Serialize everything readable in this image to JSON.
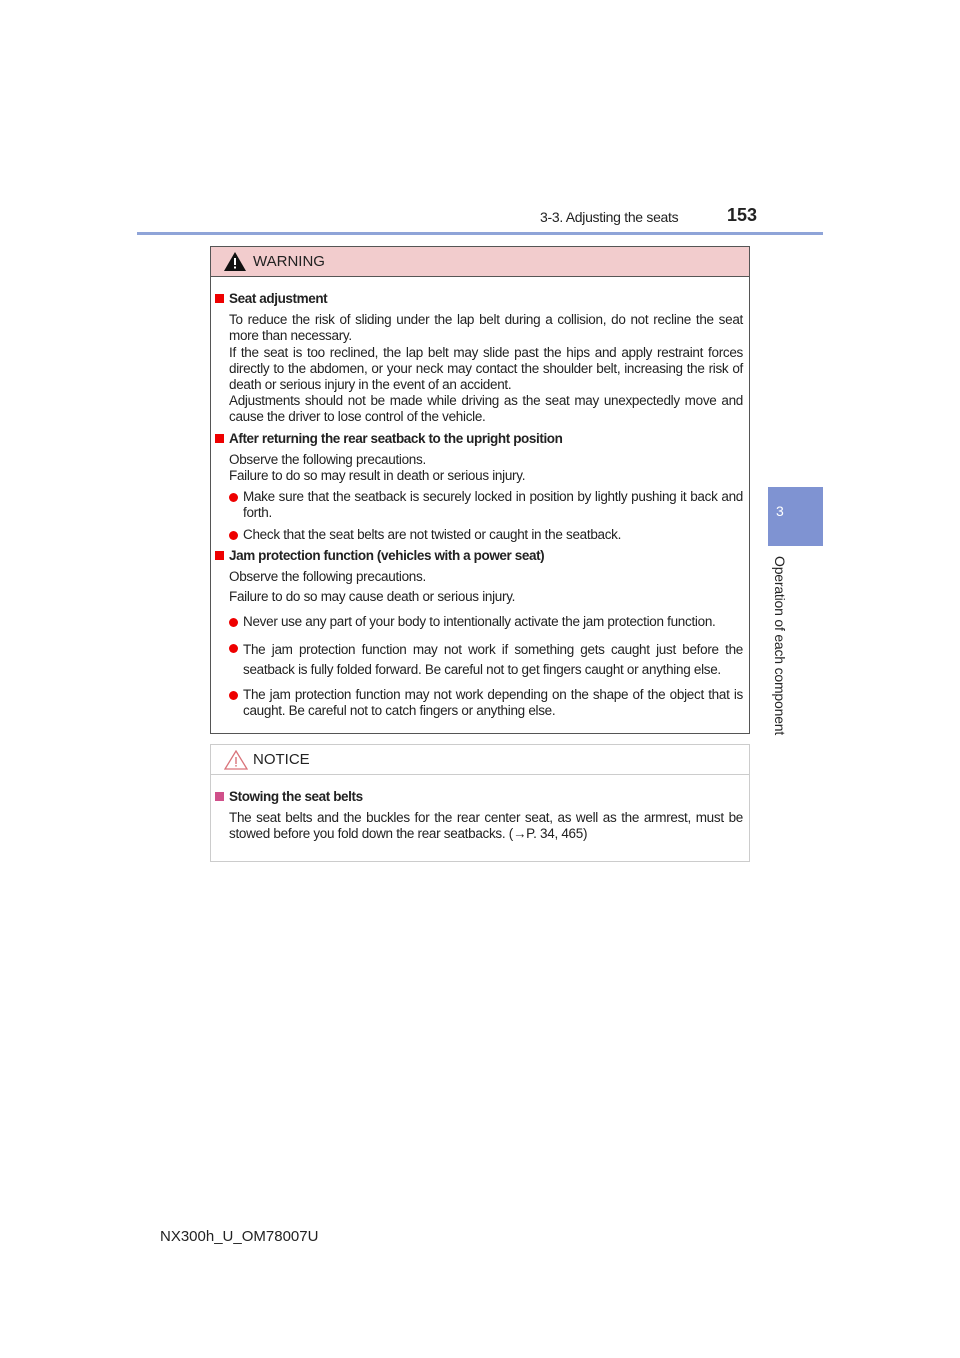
{
  "header": {
    "section": "3-3. Adjusting the seats",
    "page": "153"
  },
  "side_tab": {
    "number": "3",
    "label": "Operation of each component"
  },
  "warning": {
    "title": "WARNING",
    "sections": [
      {
        "heading": "Seat adjustment",
        "paras": [
          "To reduce the risk of sliding under the lap belt during a collision, do not recline the seat more than necessary.",
          "If the seat is too reclined, the lap belt may slide past the hips and apply restraint forces directly to the abdomen, or your neck may contact the shoulder belt, increasing the risk of death or serious injury in the event of an accident.",
          "Adjustments should not be made while driving as the seat may unexpectedly move and cause the driver to lose control of the vehicle."
        ]
      },
      {
        "heading": "After returning the rear seatback to the upright position",
        "paras": [
          "Observe the following precautions.",
          "Failure to do so may result in death or serious injury."
        ],
        "bullets": [
          "Make sure that the seatback is securely locked in position by lightly pushing it back and forth.",
          "Check that the seat belts are not twisted or caught in the seatback."
        ]
      },
      {
        "heading": "Jam protection function (vehicles with a power seat)",
        "paras": [
          "Observe the following precautions.",
          "Failure to do so may cause death or serious injury."
        ],
        "bullets": [
          "Never use any part of your body to intentionally activate the jam protection function.",
          "The jam protection function may not work if something gets caught just before the seatback is fully folded forward. Be careful not to get fingers caught or anything else.",
          "The jam protection function may not work depending on the shape of the object that is caught. Be careful not to catch fingers or anything else."
        ]
      }
    ]
  },
  "notice": {
    "title": "NOTICE",
    "heading": "Stowing the seat belts",
    "text": "The seat belts and the buckles for the rear center seat, as well as the armrest, must be stowed before you fold down the rear seatbacks. (→P. 34, 465)"
  },
  "footer": "NX300h_U_OM78007U",
  "colors": {
    "accent": "#7f93d2",
    "warning_header": "#f2cccd",
    "bullet": "#ee0000",
    "notice_square": "#d0508a"
  }
}
